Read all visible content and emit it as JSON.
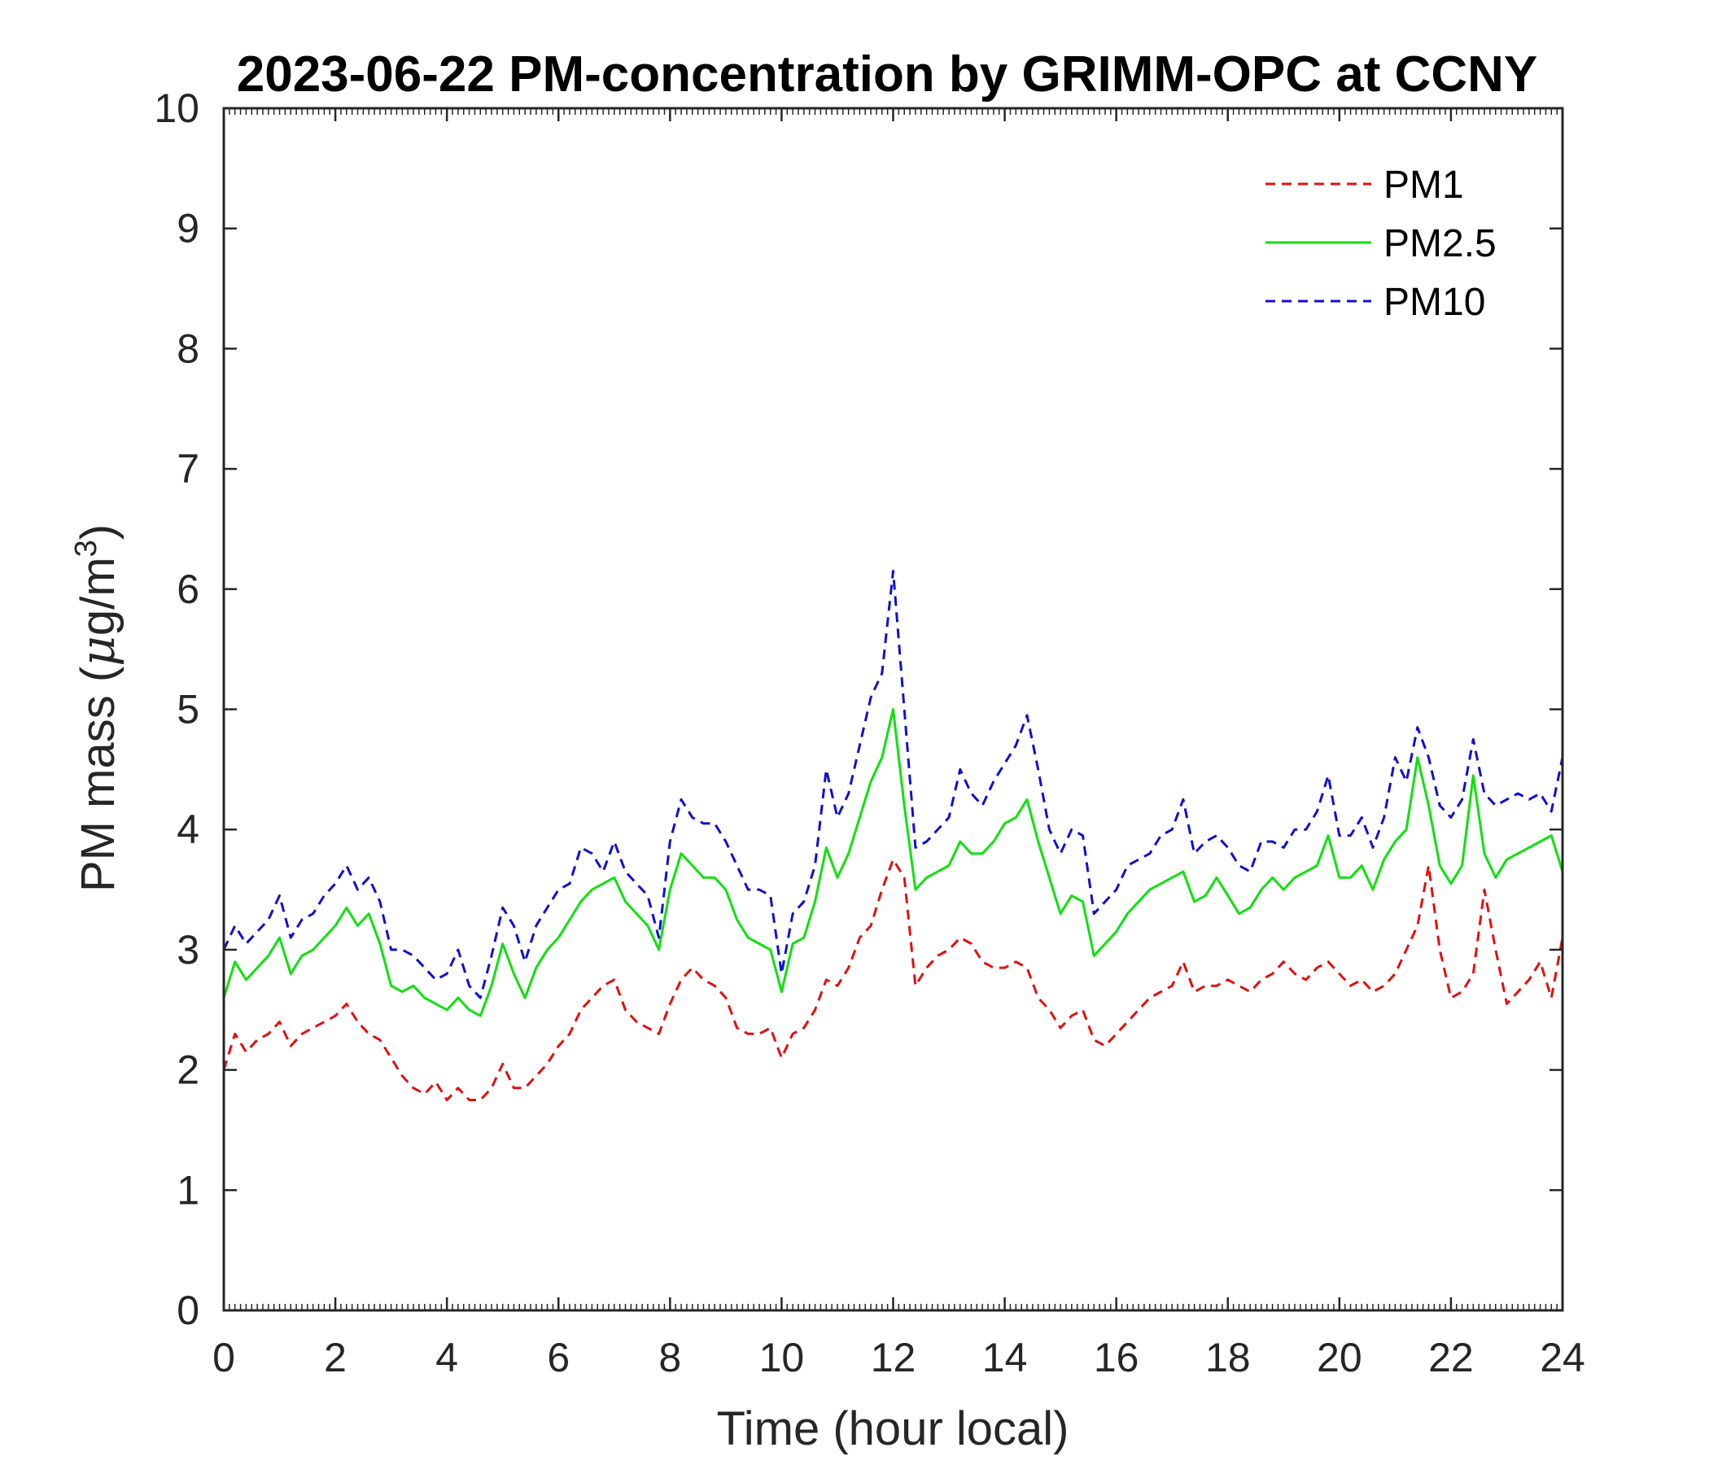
{
  "chart_data": {
    "type": "line",
    "title": "2023-06-22 PM-concentration by GRIMM-OPC at CCNY",
    "xlabel": "Time (hour local)",
    "ylabel_main": "PM mass (",
    "ylabel_mu": "μ",
    "ylabel_unit": "g/m",
    "ylabel_sup": "3",
    "ylabel_close": ")",
    "xlim": [
      0,
      24
    ],
    "ylim": [
      0,
      10
    ],
    "x_ticks": [
      0,
      2,
      4,
      6,
      8,
      10,
      12,
      14,
      16,
      18,
      20,
      22,
      24
    ],
    "y_ticks": [
      0,
      1,
      2,
      3,
      4,
      5,
      6,
      7,
      8,
      9,
      10
    ],
    "legend_position": "top-right",
    "series": [
      {
        "name": "PM1",
        "color": "#e01010",
        "dash": "dashed",
        "x": [
          0,
          0.2,
          0.4,
          0.6,
          0.8,
          1.0,
          1.2,
          1.4,
          1.6,
          1.8,
          2.0,
          2.2,
          2.4,
          2.6,
          2.8,
          3.0,
          3.2,
          3.4,
          3.6,
          3.8,
          4.0,
          4.2,
          4.4,
          4.6,
          4.8,
          5.0,
          5.2,
          5.4,
          5.6,
          5.8,
          6.0,
          6.2,
          6.4,
          6.6,
          6.8,
          7.0,
          7.2,
          7.4,
          7.6,
          7.8,
          8.0,
          8.2,
          8.4,
          8.6,
          8.8,
          9.0,
          9.2,
          9.4,
          9.6,
          9.8,
          10.0,
          10.2,
          10.4,
          10.6,
          10.8,
          11.0,
          11.2,
          11.4,
          11.6,
          11.8,
          12.0,
          12.2,
          12.4,
          12.6,
          12.8,
          13.0,
          13.2,
          13.4,
          13.6,
          13.8,
          14.0,
          14.2,
          14.4,
          14.6,
          14.8,
          15.0,
          15.2,
          15.4,
          15.6,
          15.8,
          16.0,
          16.2,
          16.4,
          16.6,
          16.8,
          17.0,
          17.2,
          17.4,
          17.6,
          17.8,
          18.0,
          18.2,
          18.4,
          18.6,
          18.8,
          19.0,
          19.2,
          19.4,
          19.6,
          19.8,
          20.0,
          20.2,
          20.4,
          20.6,
          20.8,
          21.0,
          21.2,
          21.4,
          21.6,
          21.8,
          22.0,
          22.2,
          22.4,
          22.6,
          22.8,
          23.0,
          23.2,
          23.4,
          23.6,
          23.8,
          24.0
        ],
        "values": [
          2.0,
          2.3,
          2.15,
          2.25,
          2.3,
          2.4,
          2.2,
          2.3,
          2.35,
          2.4,
          2.45,
          2.55,
          2.4,
          2.3,
          2.25,
          2.1,
          1.95,
          1.85,
          1.8,
          1.9,
          1.75,
          1.85,
          1.75,
          1.75,
          1.85,
          2.05,
          1.85,
          1.85,
          1.95,
          2.05,
          2.2,
          2.3,
          2.5,
          2.6,
          2.7,
          2.75,
          2.5,
          2.4,
          2.35,
          2.3,
          2.55,
          2.75,
          2.85,
          2.75,
          2.7,
          2.6,
          2.35,
          2.3,
          2.3,
          2.35,
          2.1,
          2.3,
          2.35,
          2.5,
          2.75,
          2.7,
          2.85,
          3.1,
          3.2,
          3.5,
          3.75,
          3.6,
          2.7,
          2.85,
          2.95,
          3.0,
          3.1,
          3.05,
          2.9,
          2.85,
          2.85,
          2.9,
          2.85,
          2.6,
          2.5,
          2.35,
          2.45,
          2.5,
          2.25,
          2.2,
          2.3,
          2.4,
          2.5,
          2.6,
          2.65,
          2.7,
          2.9,
          2.65,
          2.7,
          2.7,
          2.75,
          2.7,
          2.65,
          2.75,
          2.8,
          2.9,
          2.8,
          2.75,
          2.85,
          2.9,
          2.8,
          2.7,
          2.75,
          2.65,
          2.7,
          2.8,
          3.0,
          3.2,
          3.7,
          3.0,
          2.6,
          2.65,
          2.8,
          3.5,
          3.0,
          2.55,
          2.65,
          2.75,
          2.9,
          2.6,
          3.1
        ]
      },
      {
        "name": "PM2.5",
        "color": "#10e010",
        "dash": "solid",
        "x": [
          0,
          0.2,
          0.4,
          0.6,
          0.8,
          1.0,
          1.2,
          1.4,
          1.6,
          1.8,
          2.0,
          2.2,
          2.4,
          2.6,
          2.8,
          3.0,
          3.2,
          3.4,
          3.6,
          3.8,
          4.0,
          4.2,
          4.4,
          4.6,
          4.8,
          5.0,
          5.2,
          5.4,
          5.6,
          5.8,
          6.0,
          6.2,
          6.4,
          6.6,
          6.8,
          7.0,
          7.2,
          7.4,
          7.6,
          7.8,
          8.0,
          8.2,
          8.4,
          8.6,
          8.8,
          9.0,
          9.2,
          9.4,
          9.6,
          9.8,
          10.0,
          10.2,
          10.4,
          10.6,
          10.8,
          11.0,
          11.2,
          11.4,
          11.6,
          11.8,
          12.0,
          12.2,
          12.4,
          12.6,
          12.8,
          13.0,
          13.2,
          13.4,
          13.6,
          13.8,
          14.0,
          14.2,
          14.4,
          14.6,
          14.8,
          15.0,
          15.2,
          15.4,
          15.6,
          15.8,
          16.0,
          16.2,
          16.4,
          16.6,
          16.8,
          17.0,
          17.2,
          17.4,
          17.6,
          17.8,
          18.0,
          18.2,
          18.4,
          18.6,
          18.8,
          19.0,
          19.2,
          19.4,
          19.6,
          19.8,
          20.0,
          20.2,
          20.4,
          20.6,
          20.8,
          21.0,
          21.2,
          21.4,
          21.6,
          21.8,
          22.0,
          22.2,
          22.4,
          22.6,
          22.8,
          23.0,
          23.2,
          23.4,
          23.6,
          23.8,
          24.0
        ],
        "values": [
          2.6,
          2.9,
          2.75,
          2.85,
          2.95,
          3.1,
          2.8,
          2.95,
          3.0,
          3.1,
          3.2,
          3.35,
          3.2,
          3.3,
          3.05,
          2.7,
          2.65,
          2.7,
          2.6,
          2.55,
          2.5,
          2.6,
          2.5,
          2.45,
          2.7,
          3.05,
          2.8,
          2.6,
          2.85,
          3.0,
          3.1,
          3.25,
          3.4,
          3.5,
          3.55,
          3.6,
          3.4,
          3.3,
          3.2,
          3.0,
          3.5,
          3.8,
          3.7,
          3.6,
          3.6,
          3.5,
          3.25,
          3.1,
          3.05,
          3.0,
          2.65,
          3.05,
          3.1,
          3.4,
          3.85,
          3.6,
          3.8,
          4.1,
          4.4,
          4.6,
          5.0,
          4.2,
          3.5,
          3.6,
          3.65,
          3.7,
          3.9,
          3.8,
          3.8,
          3.9,
          4.05,
          4.1,
          4.25,
          3.9,
          3.6,
          3.3,
          3.45,
          3.4,
          2.95,
          3.05,
          3.15,
          3.3,
          3.4,
          3.5,
          3.55,
          3.6,
          3.65,
          3.4,
          3.45,
          3.6,
          3.45,
          3.3,
          3.35,
          3.5,
          3.6,
          3.5,
          3.6,
          3.65,
          3.7,
          3.95,
          3.6,
          3.6,
          3.7,
          3.5,
          3.75,
          3.9,
          4.0,
          4.6,
          4.2,
          3.7,
          3.55,
          3.7,
          4.45,
          3.8,
          3.6,
          3.75,
          3.8,
          3.85,
          3.9,
          3.95,
          3.65
        ]
      },
      {
        "name": "PM10",
        "color": "#1010d0",
        "dash": "dashed",
        "x": [
          0,
          0.2,
          0.4,
          0.6,
          0.8,
          1.0,
          1.2,
          1.4,
          1.6,
          1.8,
          2.0,
          2.2,
          2.4,
          2.6,
          2.8,
          3.0,
          3.2,
          3.4,
          3.6,
          3.8,
          4.0,
          4.2,
          4.4,
          4.6,
          4.8,
          5.0,
          5.2,
          5.4,
          5.6,
          5.8,
          6.0,
          6.2,
          6.4,
          6.6,
          6.8,
          7.0,
          7.2,
          7.4,
          7.6,
          7.8,
          8.0,
          8.2,
          8.4,
          8.6,
          8.8,
          9.0,
          9.2,
          9.4,
          9.6,
          9.8,
          10.0,
          10.2,
          10.4,
          10.6,
          10.8,
          11.0,
          11.2,
          11.4,
          11.6,
          11.8,
          12.0,
          12.2,
          12.4,
          12.6,
          12.8,
          13.0,
          13.2,
          13.4,
          13.6,
          13.8,
          14.0,
          14.2,
          14.4,
          14.6,
          14.8,
          15.0,
          15.2,
          15.4,
          15.6,
          15.8,
          16.0,
          16.2,
          16.4,
          16.6,
          16.8,
          17.0,
          17.2,
          17.4,
          17.6,
          17.8,
          18.0,
          18.2,
          18.4,
          18.6,
          18.8,
          19.0,
          19.2,
          19.4,
          19.6,
          19.8,
          20.0,
          20.2,
          20.4,
          20.6,
          20.8,
          21.0,
          21.2,
          21.4,
          21.6,
          21.8,
          22.0,
          22.2,
          22.4,
          22.6,
          22.8,
          23.0,
          23.2,
          23.4,
          23.6,
          23.8,
          24.0
        ],
        "values": [
          3.0,
          3.2,
          3.05,
          3.15,
          3.25,
          3.45,
          3.1,
          3.25,
          3.3,
          3.45,
          3.55,
          3.7,
          3.5,
          3.6,
          3.4,
          3.0,
          3.0,
          2.95,
          2.85,
          2.75,
          2.8,
          3.0,
          2.7,
          2.6,
          2.95,
          3.35,
          3.2,
          2.9,
          3.2,
          3.35,
          3.5,
          3.55,
          3.85,
          3.8,
          3.65,
          3.9,
          3.65,
          3.55,
          3.45,
          3.1,
          3.9,
          4.25,
          4.1,
          4.05,
          4.05,
          3.9,
          3.7,
          3.5,
          3.5,
          3.45,
          2.8,
          3.3,
          3.4,
          3.7,
          4.5,
          4.1,
          4.3,
          4.7,
          5.1,
          5.3,
          6.15,
          5.0,
          3.85,
          3.9,
          4.0,
          4.1,
          4.5,
          4.3,
          4.2,
          4.4,
          4.55,
          4.7,
          4.95,
          4.5,
          4.0,
          3.8,
          4.0,
          3.95,
          3.3,
          3.4,
          3.5,
          3.7,
          3.75,
          3.8,
          3.95,
          4.0,
          4.25,
          3.8,
          3.9,
          3.95,
          3.85,
          3.7,
          3.65,
          3.9,
          3.9,
          3.85,
          4.0,
          4.0,
          4.15,
          4.45,
          3.95,
          3.95,
          4.1,
          3.85,
          4.1,
          4.6,
          4.4,
          4.85,
          4.6,
          4.2,
          4.1,
          4.25,
          4.75,
          4.3,
          4.2,
          4.25,
          4.3,
          4.25,
          4.3,
          4.15,
          4.6
        ]
      }
    ]
  }
}
